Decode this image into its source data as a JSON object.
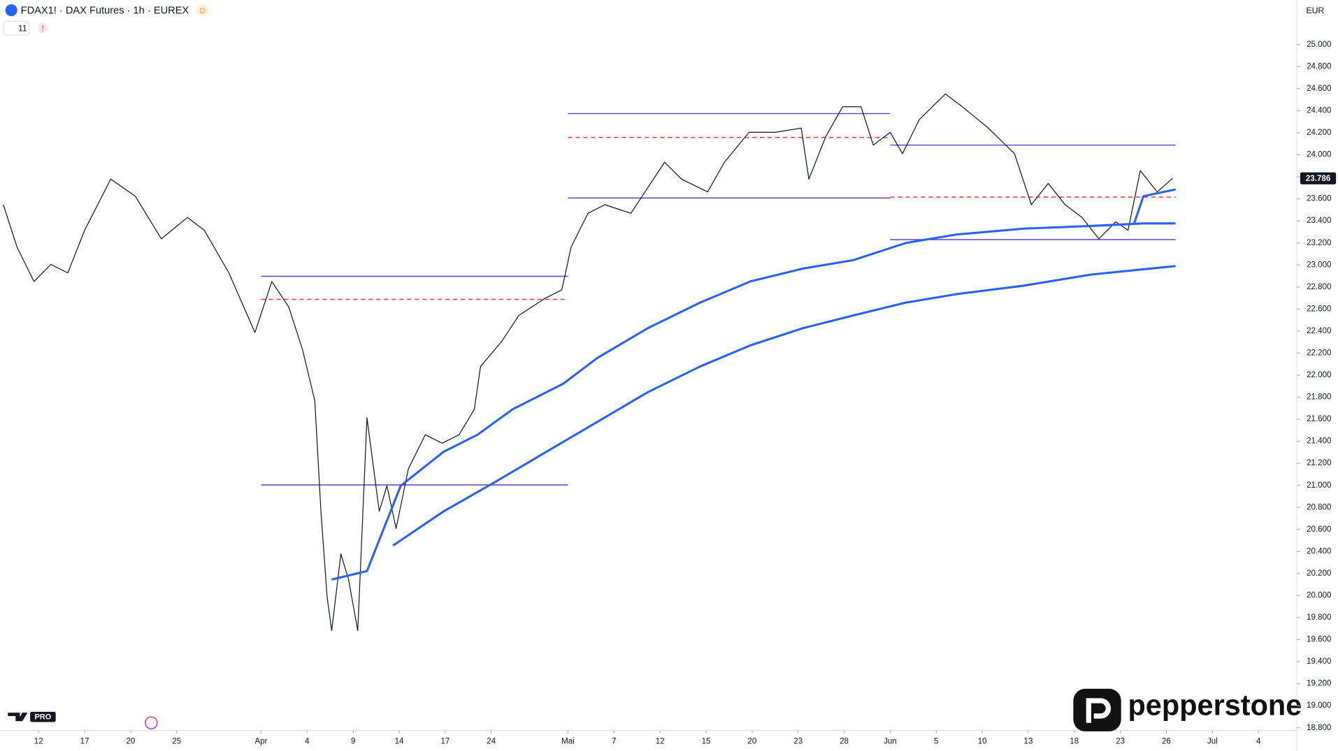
{
  "header": {
    "title": "FDAX1! · DAX Futures · 1h · EUREX",
    "badge": "D",
    "indicator_count": "11",
    "alert": "!",
    "currency": "EUR",
    "platform": "PRO",
    "brand": "pepperstone"
  },
  "chart_data": {
    "type": "line",
    "xlim": [
      -2.5,
      82
    ],
    "ylim": [
      18790,
      25250
    ],
    "xticks": [
      {
        "value": 0,
        "label": "12"
      },
      {
        "value": 3,
        "label": "17"
      },
      {
        "value": 6,
        "label": "20"
      },
      {
        "value": 9,
        "label": "25"
      },
      {
        "value": 14.5,
        "label": "Apr"
      },
      {
        "value": 17.5,
        "label": "4"
      },
      {
        "value": 20.5,
        "label": "9"
      },
      {
        "value": 23.5,
        "label": "14"
      },
      {
        "value": 26.5,
        "label": "17"
      },
      {
        "value": 29.5,
        "label": "24"
      },
      {
        "value": 34.5,
        "label": "Mai"
      },
      {
        "value": 37.5,
        "label": "7"
      },
      {
        "value": 40.5,
        "label": "12"
      },
      {
        "value": 43.5,
        "label": "15"
      },
      {
        "value": 46.5,
        "label": "20"
      },
      {
        "value": 49.5,
        "label": "23"
      },
      {
        "value": 52.5,
        "label": "28"
      },
      {
        "value": 55.5,
        "label": "Jun"
      },
      {
        "value": 58.5,
        "label": "5"
      },
      {
        "value": 61.5,
        "label": "10"
      },
      {
        "value": 64.5,
        "label": "13"
      },
      {
        "value": 67.5,
        "label": "18"
      },
      {
        "value": 70.5,
        "label": "23"
      },
      {
        "value": 73.5,
        "label": "26"
      },
      {
        "value": 76.5,
        "label": "Jul"
      },
      {
        "value": 79.5,
        "label": "4"
      }
    ],
    "yticks": [
      {
        "value": 18800,
        "label": "18.800"
      },
      {
        "value": 19000,
        "label": "19.000"
      },
      {
        "value": 19200,
        "label": "19.200"
      },
      {
        "value": 19400,
        "label": "19.400"
      },
      {
        "value": 19600,
        "label": "19.600"
      },
      {
        "value": 19800,
        "label": "19.800"
      },
      {
        "value": 20000,
        "label": "20.000"
      },
      {
        "value": 20200,
        "label": "20.200"
      },
      {
        "value": 20400,
        "label": "20.400"
      },
      {
        "value": 20600,
        "label": "20.600"
      },
      {
        "value": 20800,
        "label": "20.800"
      },
      {
        "value": 21000,
        "label": "21.000"
      },
      {
        "value": 21200,
        "label": "21.200"
      },
      {
        "value": 21400,
        "label": "21.400"
      },
      {
        "value": 21600,
        "label": "21.600"
      },
      {
        "value": 21800,
        "label": "21.800"
      },
      {
        "value": 22000,
        "label": "22.000"
      },
      {
        "value": 22200,
        "label": "22.200"
      },
      {
        "value": 22400,
        "label": "22.400"
      },
      {
        "value": 22600,
        "label": "22.600"
      },
      {
        "value": 22800,
        "label": "22.800"
      },
      {
        "value": 23000,
        "label": "23.000"
      },
      {
        "value": 23200,
        "label": "23.200"
      },
      {
        "value": 23400,
        "label": "23.400"
      },
      {
        "value": 23600,
        "label": "23.600"
      },
      {
        "value": 23800,
        "label": "23.800"
      },
      {
        "value": 24000,
        "label": "24.000"
      },
      {
        "value": 24200,
        "label": "24.200"
      },
      {
        "value": 24400,
        "label": "24.400"
      },
      {
        "value": 24600,
        "label": "24.600"
      },
      {
        "value": 24800,
        "label": "24.800"
      },
      {
        "value": 25000,
        "label": "25.000"
      }
    ],
    "grid": false,
    "last_price": {
      "value": 23786,
      "label": "23.786",
      "color": "#131722"
    },
    "series": [
      {
        "color": "#131722",
        "width": 1,
        "x": [
          -2.3,
          -1.4,
          -0.3,
          0.8,
          1.9,
          3.0,
          4.7,
          6.3,
          8.0,
          9.7,
          10.8,
          12.4,
          14.1,
          15.2,
          16.3,
          17.2,
          18.0,
          18.4,
          18.8,
          19.1,
          19.7,
          20.2,
          20.8,
          21.4,
          22.2,
          22.7,
          23.3,
          24.1,
          25.2,
          26.3,
          27.4,
          28.4,
          28.8,
          30.2,
          31.3,
          33.0,
          34.1,
          34.7,
          35.8,
          36.9,
          38.6,
          39.7,
          40.8,
          41.9,
          43.6,
          44.7,
          46.3,
          48.0,
          49.7,
          50.2,
          51.3,
          52.4,
          53.6,
          54.4,
          55.5,
          56.3,
          57.4,
          59.1,
          60.2,
          61.9,
          63.6,
          64.7,
          65.8,
          66.9,
          68.0,
          69.1,
          70.2,
          71.0,
          71.8,
          72.9,
          73.9
        ],
        "values": [
          23547,
          23160,
          22850,
          23005,
          22928,
          23315,
          23779,
          23624,
          23237,
          23431,
          23315,
          22928,
          22387,
          22850,
          22619,
          22232,
          21768,
          20764,
          19991,
          19681,
          20377,
          20145,
          19681,
          21613,
          20764,
          20996,
          20609,
          21150,
          21459,
          21382,
          21459,
          21691,
          22078,
          22310,
          22542,
          22697,
          22774,
          23160,
          23469,
          23547,
          23469,
          23701,
          23933,
          23779,
          23663,
          23933,
          24204,
          24204,
          24242,
          23779,
          24165,
          24436,
          24436,
          24088,
          24204,
          24010,
          24320,
          24552,
          24436,
          24242,
          24010,
          23547,
          23740,
          23547,
          23431,
          23237,
          23392,
          23315,
          23856,
          23663,
          23786
        ]
      },
      {
        "color": "#2962ff",
        "width": 2.5,
        "x": [
          19.1,
          21.4,
          23.6,
          26.4,
          28.6,
          30.9,
          34.2,
          36.4,
          39.7,
          43.1,
          46.4,
          49.8,
          53.1,
          56.5,
          59.8,
          64.2,
          68.6,
          72.0,
          74.1
        ],
        "values": [
          20145,
          20222,
          20996,
          21305,
          21459,
          21691,
          21923,
          22155,
          22426,
          22658,
          22851,
          22967,
          23044,
          23199,
          23276,
          23330,
          23354,
          23377,
          23377
        ]
      },
      {
        "color": "#2962ff",
        "width": 2.5,
        "x": [
          23.1,
          26.4,
          29.8,
          33.1,
          36.4,
          39.7,
          43.1,
          46.4,
          49.8,
          53.1,
          56.5,
          59.8,
          64.2,
          68.6,
          74.1
        ],
        "values": [
          20454,
          20764,
          21034,
          21305,
          21575,
          21845,
          22078,
          22271,
          22426,
          22542,
          22658,
          22735,
          22812,
          22913,
          22990
        ]
      },
      {
        "color": "#2962ff",
        "width": 2.5,
        "x": [
          71.4,
          72.0,
          74.1
        ],
        "values": [
          23377,
          23624,
          23686
        ]
      }
    ],
    "levels": [
      {
        "x": [
          14.5,
          34.5
        ],
        "value": 22897,
        "color": "#5b3fd6",
        "dashed": false
      },
      {
        "x": [
          14.5,
          34.5
        ],
        "value": 21004,
        "color": "#5b3fd6",
        "dashed": false
      },
      {
        "x": [
          14.5,
          34.5
        ],
        "value": 22688,
        "color": "#f23645",
        "dashed": true
      },
      {
        "x": [
          34.5,
          55.5
        ],
        "value": 24374,
        "color": "#5b3fd6",
        "dashed": false
      },
      {
        "x": [
          34.5,
          55.5
        ],
        "value": 23608,
        "color": "#5b3fd6",
        "dashed": false
      },
      {
        "x": [
          34.5,
          55.5
        ],
        "value": 24157,
        "color": "#f23645",
        "dashed": true
      },
      {
        "x": [
          55.5,
          74.1
        ],
        "value": 24088,
        "color": "#5b3fd6",
        "dashed": false
      },
      {
        "x": [
          55.5,
          74.1
        ],
        "value": 23230,
        "color": "#5b3fd6",
        "dashed": false
      },
      {
        "x": [
          55.5,
          74.1
        ],
        "value": 23616,
        "color": "#f23645",
        "dashed": true
      }
    ]
  }
}
